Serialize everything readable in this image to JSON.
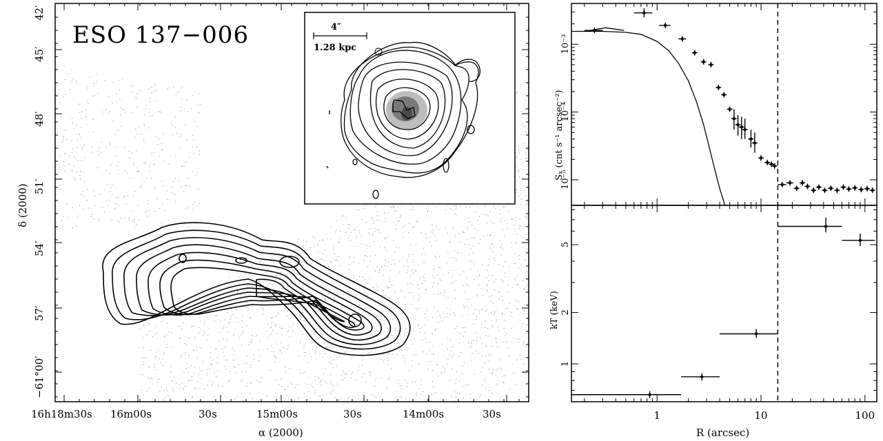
{
  "figure_left": {
    "object_name": "ESO 137−006",
    "xlabel": "α (2000)",
    "ylabel": "δ (2000)",
    "xticks": [
      "16h18m30s",
      "16m00s",
      "30s",
      "15m00s",
      "30s",
      "14m00s",
      "30s"
    ],
    "yticks": [
      "−61°00′",
      "57′",
      "54′",
      "51′",
      "48′",
      "45′",
      "42′"
    ],
    "inset": {
      "scale_arcsec": "4″",
      "scale_kpc": "1.28 kpc"
    }
  },
  "chart_data": [
    {
      "type": "scatter",
      "panel": "top-right",
      "xlabel": "R (arcsec)",
      "ylabel": "Sₓ (cnt s⁻¹ arcsec⁻²)",
      "xscale": "log",
      "yscale": "log",
      "xlim": [
        0.15,
        130
      ],
      "ylim": [
        4.2e-06,
        0.004
      ],
      "ytick_labels": [
        {
          "v": 0.001,
          "text": "10⁻³"
        },
        {
          "v": 0.0001,
          "text": "10⁻⁴"
        },
        {
          "v": 1e-05,
          "text": "10⁻⁵"
        }
      ],
      "vline_x": 14.5,
      "points": [
        {
          "x": 0.25,
          "y": 0.0016,
          "xl": 0.2,
          "xh": 0.3
        },
        {
          "x": 0.75,
          "y": 0.0029,
          "xl": 0.6,
          "xh": 0.9,
          "yl": 0.0025,
          "yh": 0.0034
        },
        {
          "x": 1.2,
          "y": 0.0019,
          "xl": 1.05,
          "xh": 1.35
        },
        {
          "x": 1.75,
          "y": 0.0012,
          "xl": 1.6,
          "xh": 1.9
        },
        {
          "x": 2.3,
          "y": 0.00075
        },
        {
          "x": 2.8,
          "y": 0.00055
        },
        {
          "x": 3.3,
          "y": 0.0005
        },
        {
          "x": 3.9,
          "y": 0.00023
        },
        {
          "x": 4.4,
          "y": 0.00018
        },
        {
          "x": 5.0,
          "y": 0.00011
        },
        {
          "x": 5.5,
          "y": 8e-05,
          "yl": 5.5e-05,
          "yh": 0.00011
        },
        {
          "x": 6.0,
          "y": 6.5e-05,
          "yl": 4.5e-05,
          "yh": 9e-05
        },
        {
          "x": 6.5,
          "y": 6e-05,
          "yl": 4e-05,
          "yh": 8.5e-05
        },
        {
          "x": 7.0,
          "y": 5.5e-05,
          "yl": 4e-05,
          "yh": 8e-05
        },
        {
          "x": 8.0,
          "y": 4e-05,
          "yl": 3e-05,
          "yh": 5.5e-05
        },
        {
          "x": 8.7,
          "y": 3.5e-05,
          "yl": 2.5e-05,
          "yh": 5e-05
        },
        {
          "x": 10.0,
          "y": 2.1e-05
        },
        {
          "x": 11.5,
          "y": 1.8e-05
        },
        {
          "x": 12.6,
          "y": 1.7e-05
        },
        {
          "x": 13.5,
          "y": 1.6e-05
        },
        {
          "x": 16,
          "y": 8.5e-06,
          "xl": 14.5,
          "xh": 17.5
        },
        {
          "x": 19,
          "y": 9e-06,
          "xl": 17.5,
          "xh": 20.5
        },
        {
          "x": 22,
          "y": 7.5e-06
        },
        {
          "x": 25,
          "y": 9e-06
        },
        {
          "x": 28,
          "y": 8e-06
        },
        {
          "x": 32,
          "y": 7e-06
        },
        {
          "x": 36,
          "y": 7.8e-06
        },
        {
          "x": 41,
          "y": 7e-06
        },
        {
          "x": 47,
          "y": 7.5e-06
        },
        {
          "x": 54,
          "y": 7e-06
        },
        {
          "x": 62,
          "y": 7.8e-06
        },
        {
          "x": 70,
          "y": 7.3e-06
        },
        {
          "x": 80,
          "y": 7.6e-06
        },
        {
          "x": 92,
          "y": 7.2e-06
        },
        {
          "x": 105,
          "y": 7.4e-06
        },
        {
          "x": 118,
          "y": 7e-06
        }
      ],
      "psf_curve": [
        [
          0.15,
          0.00155
        ],
        [
          0.3,
          0.00155
        ],
        [
          0.5,
          0.0015
        ],
        [
          0.7,
          0.0014
        ],
        [
          1.0,
          0.0011
        ],
        [
          1.3,
          0.0008
        ],
        [
          1.6,
          0.00053
        ],
        [
          2.0,
          0.00029
        ],
        [
          2.4,
          0.00014
        ],
        [
          2.8,
          6.5e-05
        ],
        [
          3.2,
          2.9e-05
        ],
        [
          3.6,
          1.4e-05
        ],
        [
          4.0,
          7.5e-06
        ],
        [
          4.5,
          4.2e-06
        ]
      ],
      "psf_bump": [
        [
          0.2,
          0.00155
        ],
        [
          0.32,
          0.00175
        ],
        [
          0.48,
          0.0016
        ]
      ]
    },
    {
      "type": "scatter",
      "panel": "bottom-right",
      "xlabel": "R (arcsec)",
      "ylabel": "kT (keV)",
      "xscale": "log",
      "yscale": "log",
      "xlim": [
        0.15,
        130
      ],
      "ylim": [
        0.6,
        8.5
      ],
      "xtick_labels": [
        {
          "v": 1,
          "text": "1"
        },
        {
          "v": 10,
          "text": "10"
        },
        {
          "v": 100,
          "text": "100"
        }
      ],
      "ytick_labels": [
        {
          "v": 1,
          "text": "1"
        },
        {
          "v": 2,
          "text": "2"
        },
        {
          "v": 5,
          "text": "5"
        }
      ],
      "vline_x": 14.5,
      "points": [
        {
          "x": 0.85,
          "y": 0.66,
          "xl": 0.15,
          "xh": 1.7,
          "yl": 0.63,
          "yh": 0.69
        },
        {
          "x": 2.7,
          "y": 0.84,
          "xl": 1.7,
          "xh": 4.0,
          "yl": 0.8,
          "yh": 0.88
        },
        {
          "x": 9.0,
          "y": 1.5,
          "xl": 4.0,
          "xh": 14.5,
          "yl": 1.42,
          "yh": 1.6
        },
        {
          "x": 42,
          "y": 6.4,
          "xl": 14.5,
          "xh": 60,
          "yl": 5.9,
          "yh": 7.2
        },
        {
          "x": 90,
          "y": 5.3,
          "xl": 60,
          "xh": 125,
          "yl": 4.9,
          "yh": 5.8
        }
      ]
    }
  ]
}
